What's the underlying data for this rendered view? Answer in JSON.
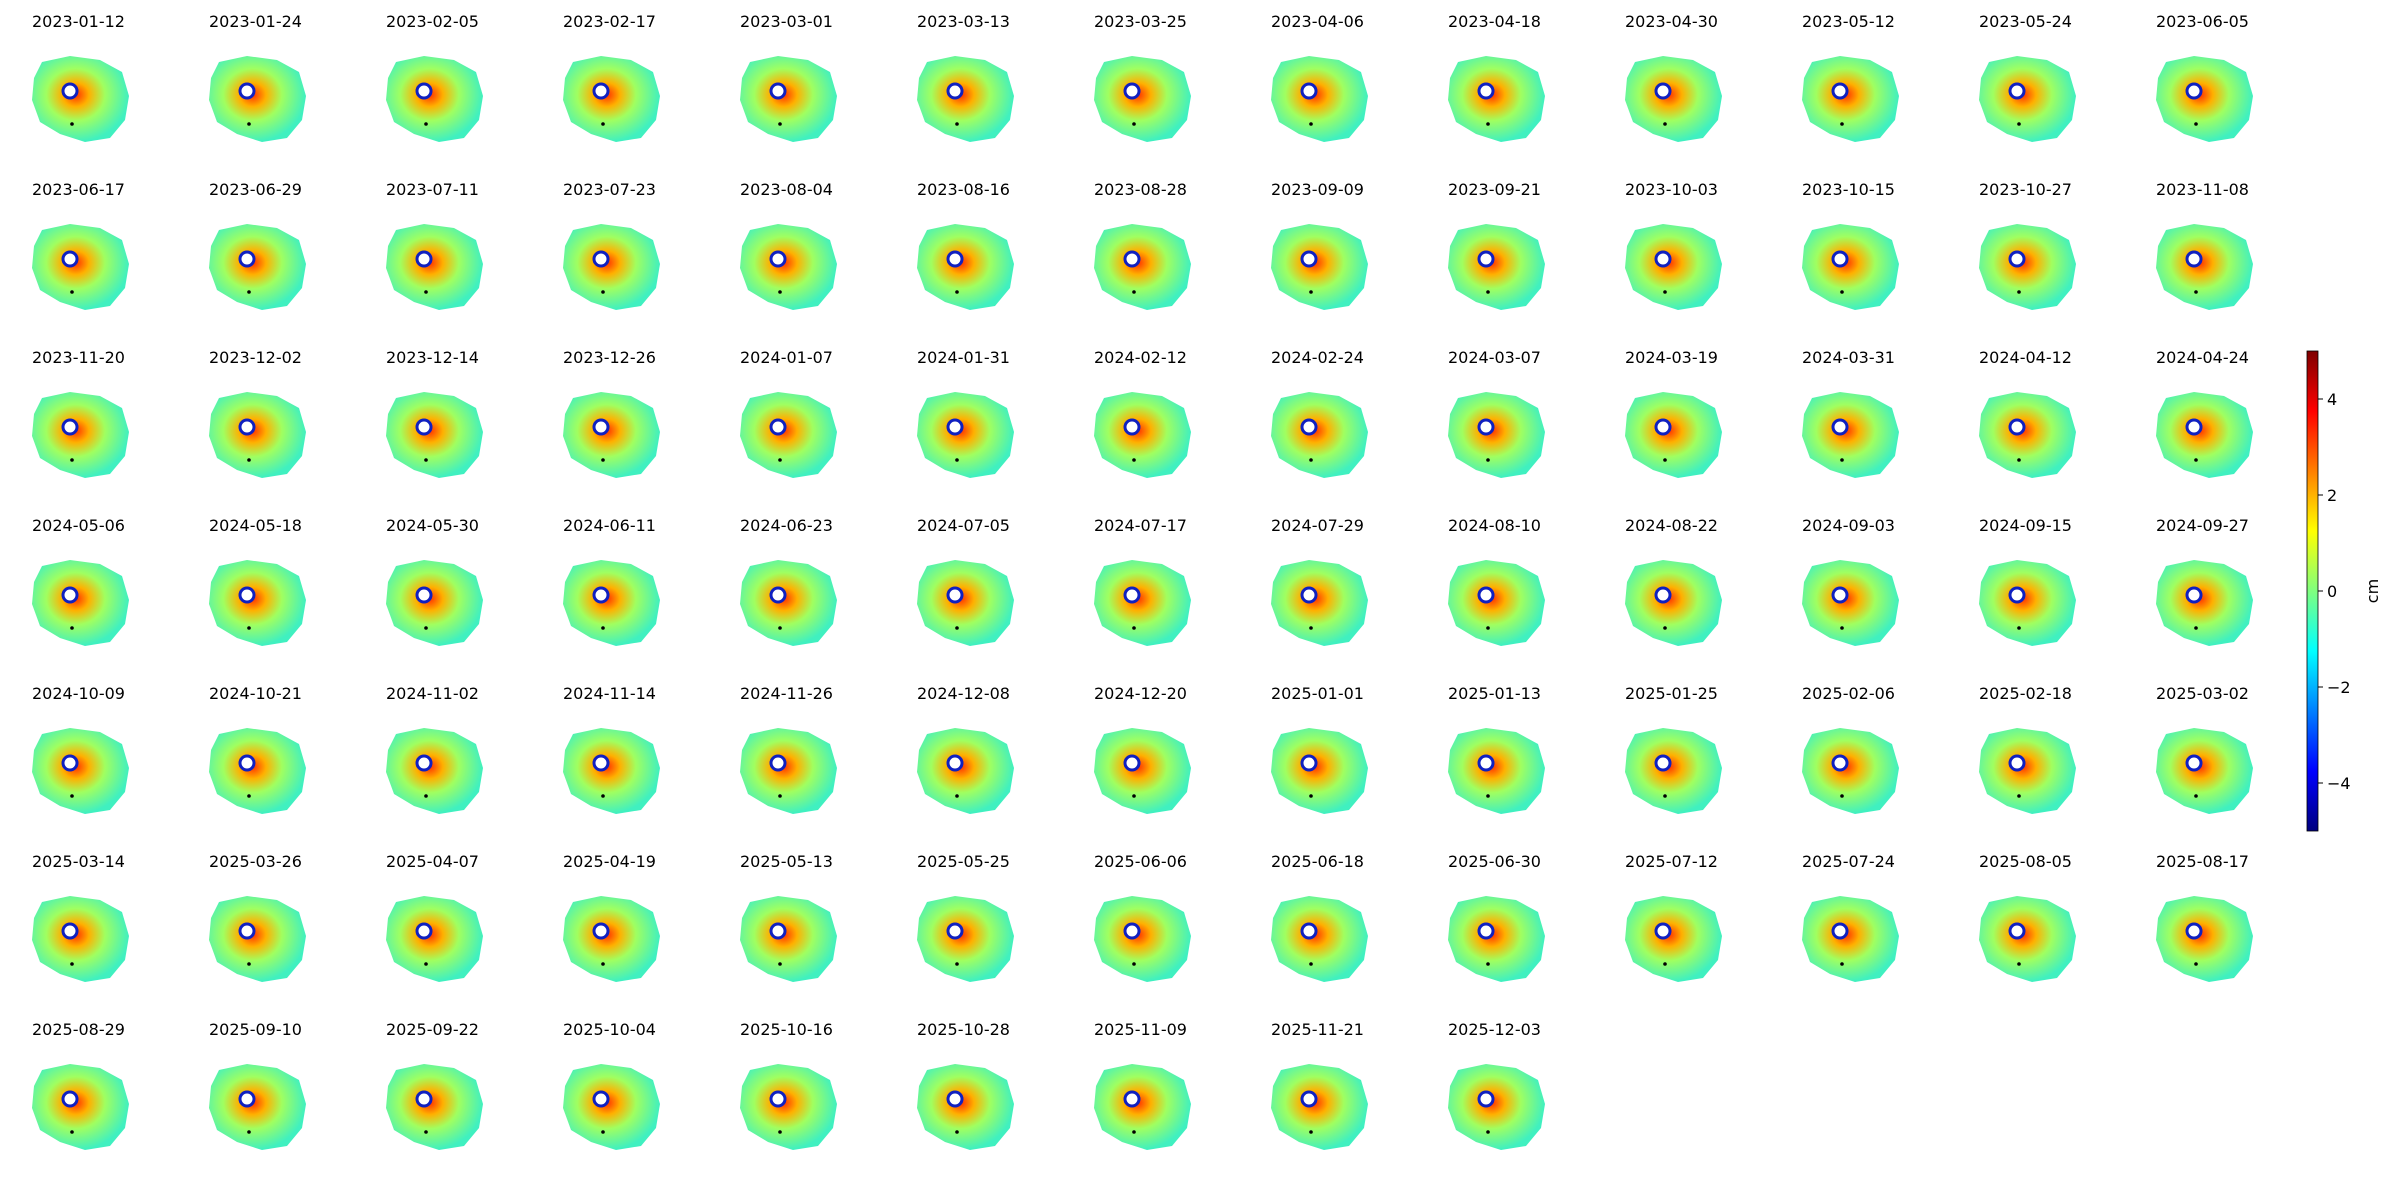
{
  "chart_data": {
    "type": "image-grid",
    "titles": [
      "2023-01-12",
      "2023-01-24",
      "2023-02-05",
      "2023-02-17",
      "2023-03-01",
      "2023-03-13",
      "2023-03-25",
      "2023-04-06",
      "2023-04-18",
      "2023-04-30",
      "2023-05-12",
      "2023-05-24",
      "2023-06-05",
      "2023-06-17",
      "2023-06-29",
      "2023-07-11",
      "2023-07-23",
      "2023-08-04",
      "2023-08-16",
      "2023-08-28",
      "2023-09-09",
      "2023-09-21",
      "2023-10-03",
      "2023-10-15",
      "2023-10-27",
      "2023-11-08",
      "2023-11-20",
      "2023-12-02",
      "2023-12-14",
      "2023-12-26",
      "2024-01-07",
      "2024-01-31",
      "2024-02-12",
      "2024-02-24",
      "2024-03-07",
      "2024-03-19",
      "2024-03-31",
      "2024-04-12",
      "2024-04-24",
      "2024-05-06",
      "2024-05-18",
      "2024-05-30",
      "2024-06-11",
      "2024-06-23",
      "2024-07-05",
      "2024-07-17",
      "2024-07-29",
      "2024-08-10",
      "2024-08-22",
      "2024-09-03",
      "2024-09-15",
      "2024-09-27",
      "2024-10-09",
      "2024-10-21",
      "2024-11-02",
      "2024-11-14",
      "2024-11-26",
      "2024-12-08",
      "2024-12-20",
      "2025-01-01",
      "2025-01-13",
      "2025-01-25",
      "2025-02-06",
      "2025-02-18",
      "2025-03-02",
      "2025-03-14",
      "2025-03-26",
      "2025-04-07",
      "2025-04-19",
      "2025-05-13",
      "2025-05-25",
      "2025-06-06",
      "2025-06-18",
      "2025-06-30",
      "2025-07-12",
      "2025-07-24",
      "2025-08-05",
      "2025-08-17",
      "2025-08-29",
      "2025-09-10",
      "2025-09-22",
      "2025-10-04",
      "2025-10-16",
      "2025-10-28",
      "2025-11-09",
      "2025-11-21",
      "2025-12-03"
    ],
    "colorbar": {
      "label": "cm",
      "lim": [
        -5,
        5
      ],
      "ticks": [
        {
          "value": -4,
          "label": "−4"
        },
        {
          "value": -2,
          "label": "−2"
        },
        0,
        2,
        4
      ],
      "colormap": [
        "#00007f",
        "#0000ff",
        "#007fff",
        "#00ffff",
        "#7fff7f",
        "#ffff00",
        "#ff7f00",
        "#ff0000",
        "#7f0000"
      ]
    }
  }
}
